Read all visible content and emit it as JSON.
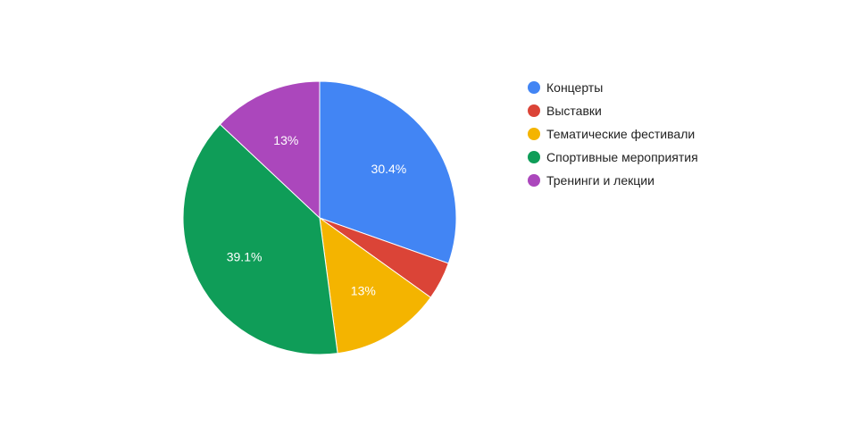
{
  "chart_data": {
    "type": "pie",
    "categories": [
      "Концерты",
      "Выставки",
      "Тематические фестивали",
      "Спортивные мероприятия",
      "Тренинги и лекции"
    ],
    "values": [
      30.4,
      4.5,
      13.0,
      39.1,
      13.0
    ],
    "slice_labels": [
      "30.4%",
      "",
      "13%",
      "39.1%",
      "13%"
    ],
    "colors": [
      "#4285f4",
      "#db4437",
      "#f4b400",
      "#0f9d58",
      "#ab47bc"
    ],
    "start_angle_deg": 0,
    "direction": "clockwise",
    "legend": "right"
  }
}
